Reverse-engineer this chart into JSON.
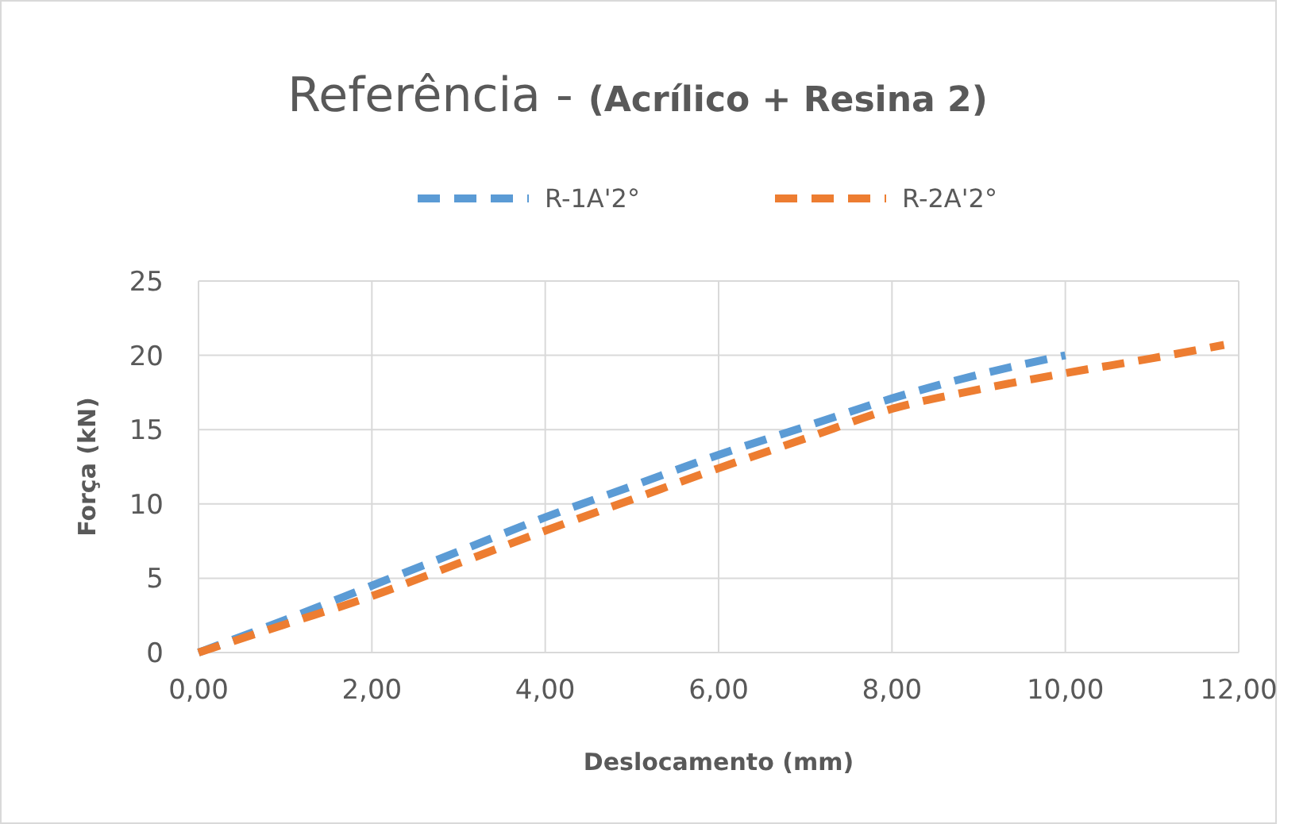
{
  "chart_data": {
    "type": "line",
    "title": "Referência - (Acrílico + Resina 2)",
    "xlabel": "Deslocamento (mm)",
    "ylabel": "Força (kN)",
    "series": [
      {
        "name": "R-1A'2°",
        "color": "#5b9bd5",
        "x": [
          0,
          1,
          2,
          3,
          4,
          5,
          6,
          7,
          8,
          9,
          10
        ],
        "values": [
          0,
          2.2,
          4.5,
          6.8,
          9.1,
          11.2,
          13.3,
          15.2,
          17.1,
          18.7,
          20
        ]
      },
      {
        "name": "R-2A'2°",
        "color": "#ed7d31",
        "x": [
          0,
          1,
          2,
          3,
          4,
          5,
          6,
          7,
          8,
          9,
          10,
          11,
          11.83
        ],
        "values": [
          0,
          1.9,
          3.8,
          6.0,
          8.2,
          10.3,
          12.4,
          14.4,
          16.4,
          17.7,
          18.8,
          19.8,
          20.7
        ]
      }
    ],
    "xlim": [
      0,
      12
    ],
    "xticks": [
      {
        "value": 0,
        "label": "0,00"
      },
      {
        "value": 2,
        "label": "2,00"
      },
      {
        "value": 4,
        "label": "4,00"
      },
      {
        "value": 6,
        "label": "6,00"
      },
      {
        "value": 8,
        "label": "8,00"
      },
      {
        "value": 10,
        "label": "10,00"
      },
      {
        "value": 12,
        "label": "12,00"
      }
    ],
    "ylim": [
      0,
      25
    ],
    "yticks": [
      0,
      5,
      10,
      15,
      20,
      25
    ],
    "grid": true,
    "legend": "top",
    "line_style": "dashed",
    "marker": "none"
  }
}
